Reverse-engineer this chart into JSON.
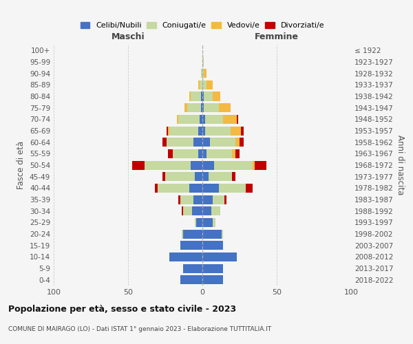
{
  "age_groups": [
    "0-4",
    "5-9",
    "10-14",
    "15-19",
    "20-24",
    "25-29",
    "30-34",
    "35-39",
    "40-44",
    "45-49",
    "50-54",
    "55-59",
    "60-64",
    "65-69",
    "70-74",
    "75-79",
    "80-84",
    "85-89",
    "90-94",
    "95-99",
    "100+"
  ],
  "birth_years": [
    "2018-2022",
    "2013-2017",
    "2008-2012",
    "2003-2007",
    "1998-2002",
    "1993-1997",
    "1988-1992",
    "1983-1987",
    "1978-1982",
    "1973-1977",
    "1968-1972",
    "1963-1967",
    "1958-1962",
    "1953-1957",
    "1948-1952",
    "1943-1947",
    "1938-1942",
    "1933-1937",
    "1928-1932",
    "1923-1927",
    "≤ 1922"
  ],
  "males": {
    "celibi": [
      15,
      13,
      22,
      15,
      13,
      4,
      7,
      6,
      9,
      5,
      8,
      3,
      6,
      3,
      2,
      1,
      1,
      0,
      0,
      0,
      0
    ],
    "coniugati": [
      0,
      0,
      0,
      0,
      1,
      1,
      6,
      9,
      21,
      20,
      31,
      17,
      18,
      19,
      14,
      9,
      7,
      2,
      1,
      0,
      0
    ],
    "vedovi": [
      0,
      0,
      0,
      0,
      0,
      0,
      0,
      0,
      0,
      0,
      0,
      0,
      0,
      1,
      1,
      2,
      1,
      1,
      0,
      0,
      0
    ],
    "divorziati": [
      0,
      0,
      0,
      0,
      0,
      0,
      1,
      1,
      2,
      2,
      8,
      3,
      3,
      1,
      0,
      0,
      0,
      0,
      0,
      0,
      0
    ]
  },
  "females": {
    "nubili": [
      14,
      14,
      23,
      14,
      13,
      7,
      6,
      7,
      11,
      4,
      8,
      3,
      5,
      2,
      2,
      1,
      1,
      0,
      0,
      0,
      0
    ],
    "coniugate": [
      0,
      0,
      0,
      0,
      1,
      2,
      6,
      8,
      18,
      16,
      26,
      17,
      17,
      17,
      12,
      10,
      6,
      3,
      1,
      1,
      0
    ],
    "vedove": [
      0,
      0,
      0,
      0,
      0,
      0,
      0,
      0,
      0,
      0,
      1,
      2,
      3,
      7,
      9,
      8,
      5,
      4,
      2,
      0,
      0
    ],
    "divorziate": [
      0,
      0,
      0,
      0,
      0,
      0,
      0,
      1,
      5,
      2,
      8,
      3,
      3,
      2,
      1,
      0,
      0,
      0,
      0,
      0,
      0
    ]
  },
  "colors": {
    "celibi": "#4472C4",
    "coniugati": "#c5d9a0",
    "vedovi": "#F4B942",
    "divorziati": "#C00000"
  },
  "xlim": 100,
  "title": "Popolazione per età, sesso e stato civile - 2023",
  "subtitle": "COMUNE DI MAIRAGO (LO) - Dati ISTAT 1° gennaio 2023 - Elaborazione TUTTITALIA.IT",
  "ylabel_left": "Fasce di età",
  "ylabel_right": "Anni di nascita",
  "xlabel_left": "Maschi",
  "xlabel_right": "Femmine",
  "legend_labels": [
    "Celibi/Nubili",
    "Coniugati/e",
    "Vedovi/e",
    "Divorziati/e"
  ],
  "bg_color": "#f5f5f5"
}
